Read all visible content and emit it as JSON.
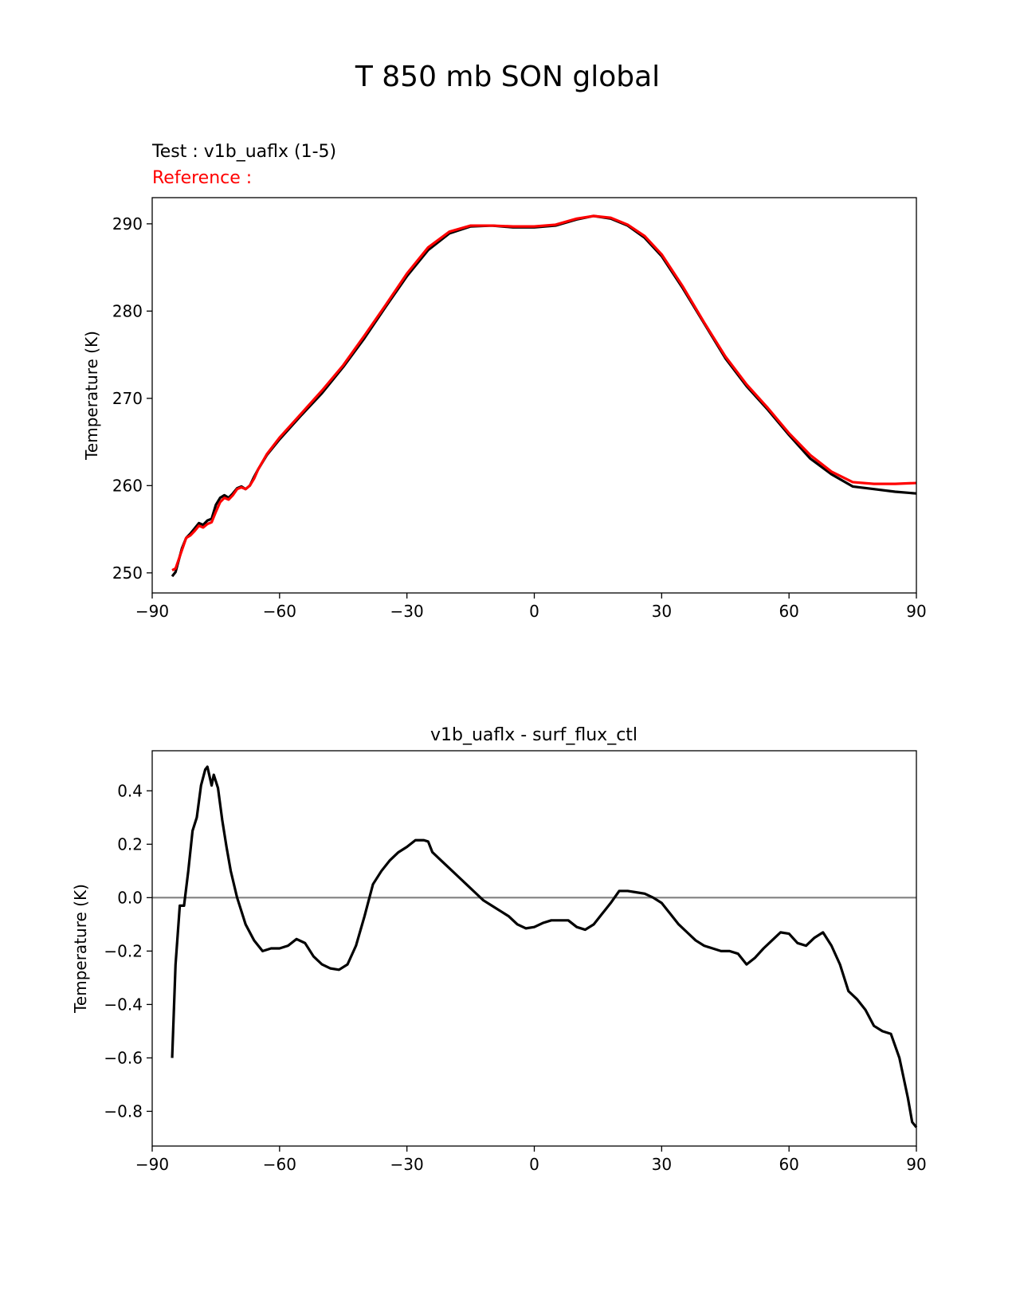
{
  "figure": {
    "title": "T 850 mb SON global",
    "test_label": "Test : v1b_uaflx (1-5)",
    "reference_label": "Reference :",
    "line_colors": {
      "test": "#000000",
      "reference": "#ff0000",
      "zero_line": "#808080"
    }
  },
  "chart_data": [
    {
      "type": "line",
      "title": "",
      "xlabel": "",
      "ylabel": "Temperature (K)",
      "xlim": [
        -90,
        90
      ],
      "ylim": [
        247.7,
        293.0
      ],
      "xticks": [
        -90,
        -60,
        -30,
        0,
        30,
        60,
        90
      ],
      "xtick_labels": [
        "−90",
        "−60",
        "−30",
        "0",
        "30",
        "60",
        "90"
      ],
      "yticks": [
        250,
        260,
        270,
        280,
        290
      ],
      "ytick_labels": [
        "250",
        "260",
        "270",
        "280",
        "290"
      ],
      "series": [
        {
          "name": "Test : v1b_uaflx (1-5)",
          "color": "#000000",
          "x": [
            -85.3,
            -84.5,
            -83,
            -82,
            -81,
            -80,
            -79,
            -78,
            -77,
            -76,
            -75,
            -74,
            -73,
            -72,
            -71,
            -70,
            -69,
            -68,
            -67,
            -66,
            -65,
            -63,
            -60,
            -55,
            -50,
            -45,
            -40,
            -35,
            -30,
            -25,
            -20,
            -15,
            -10,
            -5,
            0,
            5,
            10,
            14,
            18,
            22,
            26,
            30,
            35,
            40,
            45,
            50,
            55,
            60,
            65,
            70,
            75,
            80,
            85,
            90
          ],
          "y": [
            249.6,
            250.1,
            252.8,
            254.0,
            254.5,
            255.1,
            255.7,
            255.5,
            256.0,
            256.2,
            257.8,
            258.6,
            258.9,
            258.6,
            259.1,
            259.7,
            259.9,
            259.6,
            260.0,
            261.0,
            261.9,
            263.5,
            265.3,
            268.0,
            270.6,
            273.6,
            276.9,
            280.5,
            284.0,
            287.0,
            288.9,
            289.7,
            289.8,
            289.6,
            289.6,
            289.8,
            290.5,
            290.9,
            290.6,
            289.8,
            288.4,
            286.3,
            282.6,
            278.6,
            274.6,
            271.4,
            268.7,
            265.8,
            263.1,
            261.3,
            259.9,
            259.6,
            259.3,
            259.1
          ]
        },
        {
          "name": "Reference :",
          "color": "#ff0000",
          "x": [
            -85.3,
            -84.5,
            -83,
            -82,
            -81,
            -80,
            -79,
            -78,
            -77,
            -76,
            -75,
            -74,
            -73,
            -72,
            -71,
            -70,
            -69,
            -68,
            -67,
            -66,
            -65,
            -63,
            -60,
            -55,
            -50,
            -45,
            -40,
            -35,
            -30,
            -25,
            -20,
            -15,
            -10,
            -5,
            0,
            5,
            10,
            14,
            18,
            22,
            26,
            30,
            35,
            40,
            45,
            50,
            55,
            60,
            65,
            70,
            75,
            80,
            85,
            90
          ],
          "y": [
            250.3,
            250.5,
            252.6,
            254.0,
            254.3,
            254.8,
            255.4,
            255.2,
            255.6,
            255.8,
            257.0,
            258.1,
            258.6,
            258.4,
            258.9,
            259.6,
            259.8,
            259.6,
            260.0,
            260.8,
            261.9,
            263.6,
            265.5,
            268.2,
            270.9,
            273.8,
            277.2,
            280.7,
            284.3,
            287.3,
            289.1,
            289.8,
            289.8,
            289.7,
            289.7,
            289.9,
            290.6,
            290.9,
            290.7,
            289.9,
            288.6,
            286.5,
            282.8,
            278.7,
            274.8,
            271.6,
            268.9,
            266.0,
            263.5,
            261.6,
            260.4,
            260.2,
            260.2,
            260.3
          ]
        }
      ]
    },
    {
      "type": "line",
      "title": "v1b_uaflx - surf_flux_ctl",
      "xlabel": "",
      "ylabel": "Temperature (K)",
      "xlim": [
        -90,
        90
      ],
      "ylim": [
        -0.93,
        0.55
      ],
      "xticks": [
        -90,
        -60,
        -30,
        0,
        30,
        60,
        90
      ],
      "xtick_labels": [
        "−90",
        "−60",
        "−30",
        "0",
        "30",
        "60",
        "90"
      ],
      "yticks": [
        -0.8,
        -0.6,
        -0.4,
        -0.2,
        0.0,
        0.2,
        0.4
      ],
      "ytick_labels": [
        "−0.8",
        "−0.6",
        "−0.4",
        "−0.2",
        "0.0",
        "0.2",
        "0.4"
      ],
      "reference_line": 0.0,
      "series": [
        {
          "name": "v1b_uaflx - surf_flux_ctl",
          "color": "#000000",
          "x": [
            -85.3,
            -84.5,
            -83.5,
            -82.5,
            -81.5,
            -80.5,
            -79.5,
            -78.5,
            -77.5,
            -77,
            -76,
            -75.5,
            -74.5,
            -73.5,
            -72.5,
            -71.5,
            -70,
            -68,
            -66,
            -64,
            -62,
            -60,
            -58,
            -56,
            -54,
            -52,
            -50,
            -48,
            -46,
            -44,
            -42,
            -40,
            -38,
            -36,
            -34,
            -32,
            -30,
            -28,
            -26,
            -25,
            -24,
            -22,
            -20,
            -18,
            -16,
            -14,
            -12,
            -10,
            -8,
            -6,
            -4,
            -2,
            0,
            2,
            4,
            6,
            8,
            10,
            12,
            14,
            16,
            18,
            20,
            22,
            24,
            26,
            28,
            30,
            32,
            34,
            36,
            38,
            40,
            42,
            44,
            46,
            48,
            50,
            52,
            54,
            56,
            58,
            60,
            62,
            64,
            66,
            68,
            70,
            72,
            74,
            76,
            78,
            80,
            82,
            84,
            86,
            88,
            89,
            90
          ],
          "y": [
            -0.6,
            -0.25,
            -0.03,
            -0.03,
            0.1,
            0.25,
            0.3,
            0.42,
            0.48,
            0.49,
            0.42,
            0.46,
            0.41,
            0.29,
            0.19,
            0.1,
            0.0,
            -0.1,
            -0.16,
            -0.2,
            -0.19,
            -0.19,
            -0.18,
            -0.155,
            -0.17,
            -0.22,
            -0.25,
            -0.265,
            -0.27,
            -0.25,
            -0.18,
            -0.07,
            0.05,
            0.1,
            0.14,
            0.17,
            0.19,
            0.215,
            0.215,
            0.21,
            0.17,
            0.14,
            0.11,
            0.08,
            0.05,
            0.02,
            -0.01,
            -0.03,
            -0.05,
            -0.07,
            -0.1,
            -0.115,
            -0.11,
            -0.095,
            -0.085,
            -0.085,
            -0.085,
            -0.11,
            -0.12,
            -0.1,
            -0.06,
            -0.02,
            0.025,
            0.025,
            0.02,
            0.015,
            0.0,
            -0.02,
            -0.06,
            -0.1,
            -0.13,
            -0.16,
            -0.18,
            -0.19,
            -0.2,
            -0.2,
            -0.21,
            -0.25,
            -0.225,
            -0.19,
            -0.16,
            -0.13,
            -0.135,
            -0.17,
            -0.18,
            -0.15,
            -0.13,
            -0.18,
            -0.25,
            -0.35,
            -0.38,
            -0.42,
            -0.48,
            -0.5,
            -0.51,
            -0.6,
            -0.75,
            -0.84,
            -0.86
          ]
        }
      ]
    }
  ]
}
